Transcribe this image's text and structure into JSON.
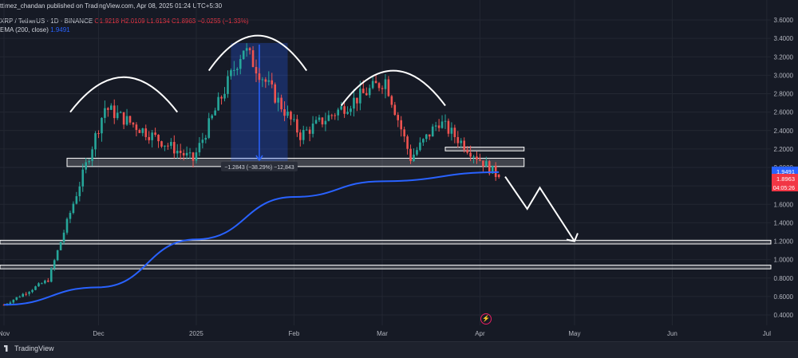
{
  "header": {
    "publisher": "ttimez_chandan published on TradingView.com, Apr 08, 2025 01:24 UTC+5:30",
    "symbol": "XRP / TetherUS · 1D · BINANCE",
    "o": "O1.9218",
    "h": "H2.0109",
    "l": "L1.6134",
    "c": "C1.8963",
    "chg": "−0.0255 (−1.33%)",
    "ema_label": "EMA (200, close)",
    "ema_value": "1.9491"
  },
  "footer": {
    "brand": "TradingView"
  },
  "measure_label": "−1.2843 (−38.29%) −12,843",
  "price_tags": {
    "ema": "1.9491",
    "last": "1.8963",
    "countdown": "04:05:26"
  },
  "colors": {
    "up": "#26a69a",
    "down": "#ef5350",
    "ema": "#2962ff",
    "bg": "#161a25",
    "measure": "#2962ff",
    "drawings": "#ffffff"
  },
  "icons": [
    "tradingview-logo-icon",
    "lightning-bolt-icon"
  ],
  "chart_data": {
    "type": "candlestick",
    "x_ticks": [
      "Nov",
      "Dec",
      "2025",
      "Feb",
      "Mar",
      "Apr",
      "May",
      "Jun",
      "Jul"
    ],
    "y_ticks": [
      "3.6000",
      "3.4000",
      "3.2000",
      "3.0000",
      "2.8000",
      "2.6000",
      "2.4000",
      "2.2000",
      "2.0000",
      "1.8000",
      "1.6000",
      "1.4000",
      "1.2000",
      "1.0000",
      "0.8000",
      "0.6000",
      "0.4000"
    ],
    "ylim": [
      0.33,
      3.72
    ],
    "series": [
      {
        "name": "XRP / TetherUS · 1D · BINANCE",
        "kind": "candles",
        "key_values": [
          {
            "date": "2024-11-01",
            "close": 0.51
          },
          {
            "date": "2024-11-15",
            "close": 0.78
          },
          {
            "date": "2024-12-03",
            "close": 2.65
          },
          {
            "date": "2024-12-31",
            "close": 2.08
          },
          {
            "date": "2025-01-16",
            "close": 3.3
          },
          {
            "date": "2025-02-03",
            "close": 2.35
          },
          {
            "date": "2025-03-02",
            "close": 2.95
          },
          {
            "date": "2025-03-10",
            "close": 2.1
          },
          {
            "date": "2025-03-19",
            "close": 2.5
          },
          {
            "date": "2025-04-07",
            "close": 1.8963
          }
        ]
      },
      {
        "name": "EMA (200, close)",
        "kind": "line",
        "key_values": [
          {
            "date": "2024-11-01",
            "value": 0.51
          },
          {
            "date": "2024-12-01",
            "value": 0.7
          },
          {
            "date": "2025-01-01",
            "value": 1.22
          },
          {
            "date": "2025-02-01",
            "value": 1.68
          },
          {
            "date": "2025-03-01",
            "value": 1.85
          },
          {
            "date": "2025-04-07",
            "value": 1.9491
          }
        ]
      }
    ],
    "annotations": {
      "neckline_zone": [
        2.01,
        2.1
      ],
      "small_zone": [
        2.18,
        2.22
      ],
      "support_zone_1": [
        1.17,
        1.21
      ],
      "support_zone_2": [
        0.9,
        0.94
      ],
      "measured_move": {
        "from": 3.35,
        "to": 2.07,
        "label": "−1.2843 (−38.29%) −12,843"
      },
      "pattern": "head-and-shoulders",
      "projection_target": 1.2
    }
  }
}
